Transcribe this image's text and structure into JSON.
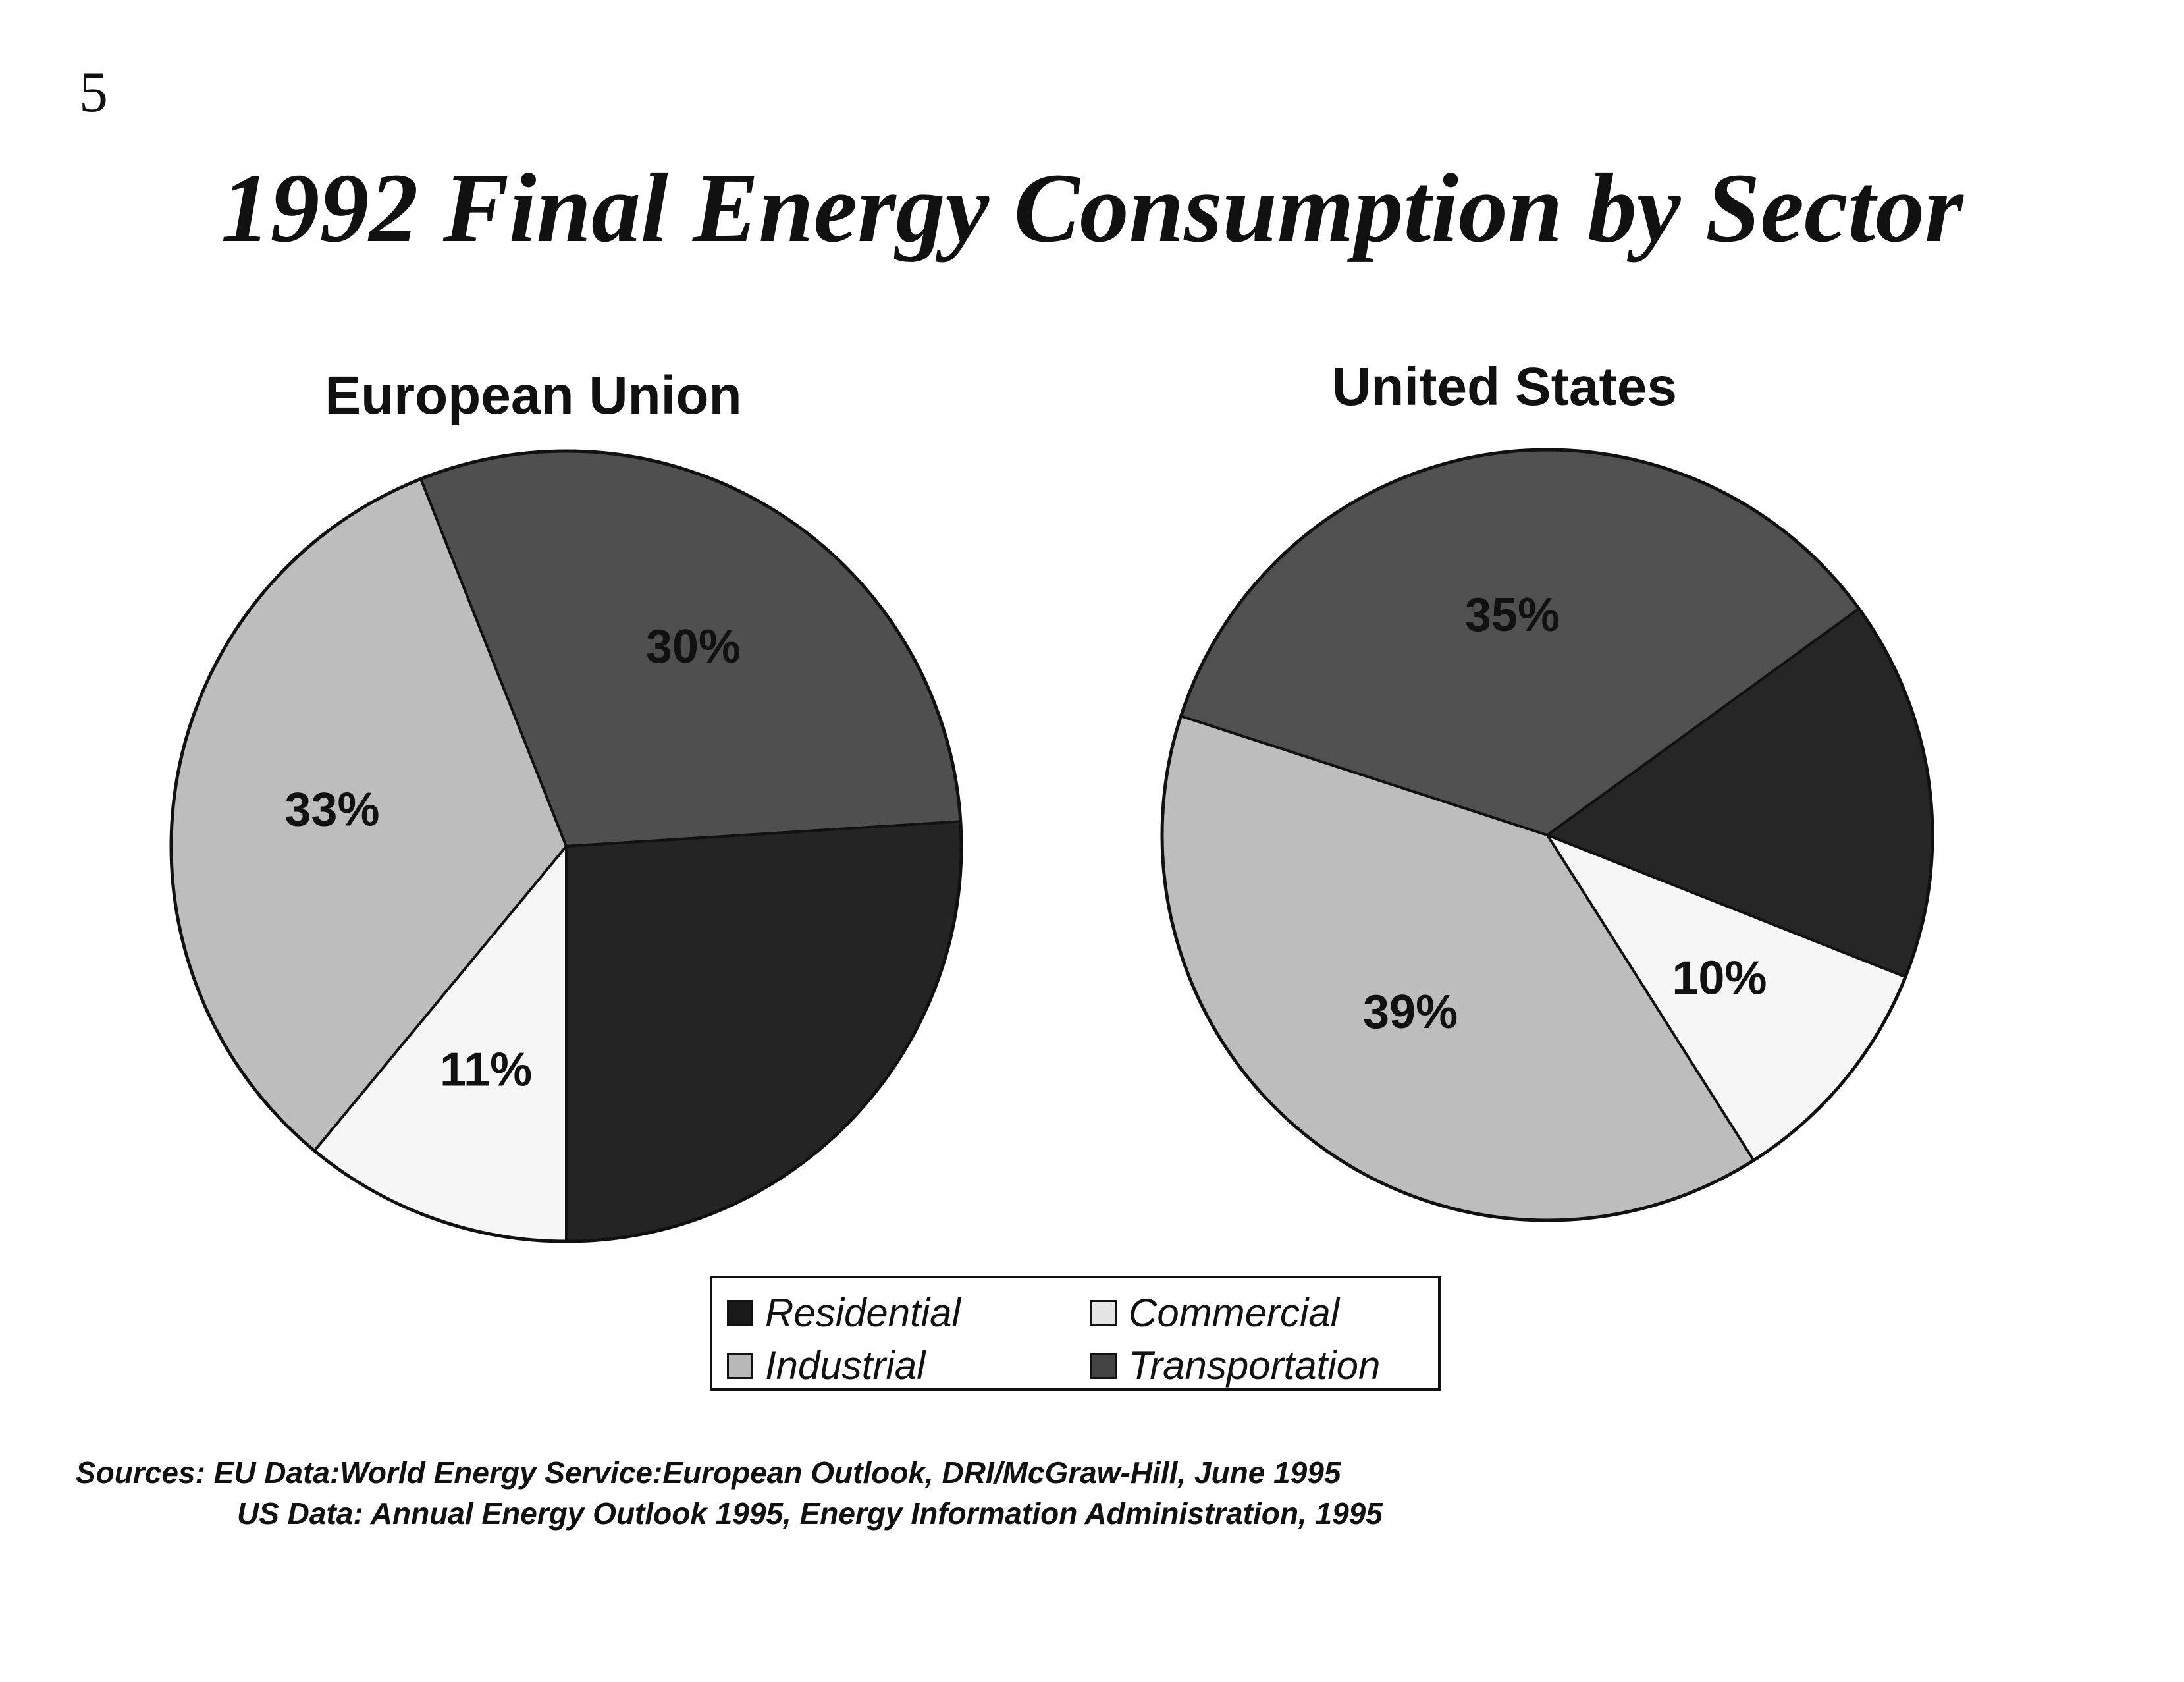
{
  "page_number": "5",
  "title": "1992 Final Energy Consumption by Sector",
  "legend": {
    "items": [
      {
        "label": "Residential",
        "color": "#1a1a1a"
      },
      {
        "label": "Commercial",
        "color": "#e4e4e4"
      },
      {
        "label": "Industrial",
        "color": "#b8b8b8"
      },
      {
        "label": "Transportation",
        "color": "#444444"
      }
    ]
  },
  "chart_data": [
    {
      "type": "pie",
      "title": "European Union",
      "slices": [
        {
          "category": "Commercial",
          "value": 11,
          "label": "11%",
          "color": "#f6f6f6"
        },
        {
          "category": "Industrial",
          "value": 33,
          "label": "33%",
          "color": "#bdbdbd"
        },
        {
          "category": "Transportation",
          "value": 30,
          "label": "30%",
          "color": "#4f4f4f"
        },
        {
          "category": "Residential",
          "value": 26,
          "label": "",
          "color": "#242424"
        }
      ]
    },
    {
      "type": "pie",
      "title": "United States",
      "slices": [
        {
          "category": "Residential",
          "value": 16,
          "label": "",
          "color": "#262626"
        },
        {
          "category": "Commercial",
          "value": 10,
          "label": "10%",
          "color": "#f6f6f6"
        },
        {
          "category": "Industrial",
          "value": 39,
          "label": "39%",
          "color": "#bdbdbd"
        },
        {
          "category": "Transportation",
          "value": 35,
          "label": "35%",
          "color": "#505050"
        }
      ]
    }
  ],
  "sources": {
    "line1": "Sources: EU Data:World Energy Service:European Outlook, DRI/McGraw-Hill, June 1995",
    "line2": "US Data: Annual Energy Outlook 1995, Energy Information Administration, 1995"
  }
}
